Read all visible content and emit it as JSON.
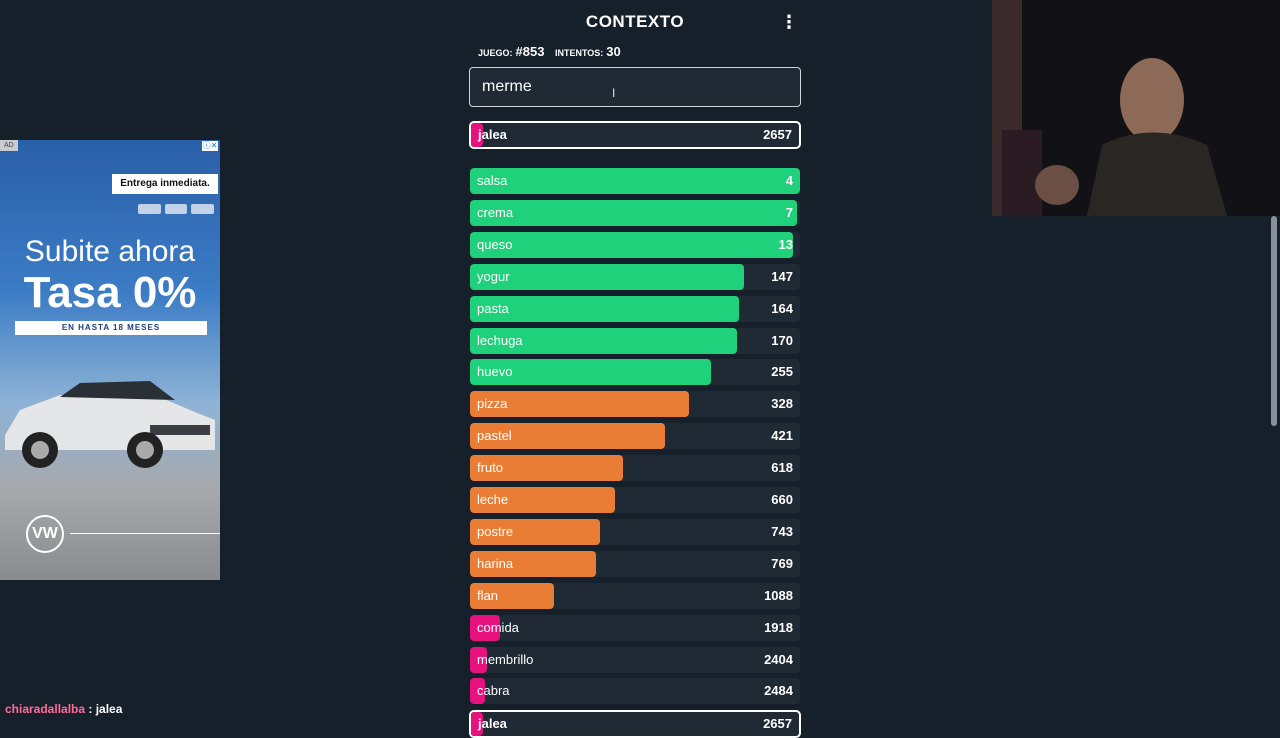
{
  "header": {
    "title": "CONTEXTO",
    "game_label": "JUEGO:",
    "game_value": "#853",
    "attempts_label": "INTENTOS:",
    "attempts_value": "30",
    "menu_icon": "vertical-dots-icon"
  },
  "input": {
    "value": "merme",
    "placeholder": ""
  },
  "current_guess": {
    "word": "jalea",
    "rank": "2657",
    "color": "#e8127f"
  },
  "colors": {
    "green": "#1ed17a",
    "orange": "#ea7d36",
    "pink": "#e8127f",
    "background": "#15202b"
  },
  "guesses": [
    {
      "word": "salsa",
      "rank": "4",
      "color": "green",
      "fill": 1.0
    },
    {
      "word": "crema",
      "rank": "7",
      "color": "green",
      "fill": 0.99
    },
    {
      "word": "queso",
      "rank": "13",
      "color": "green",
      "fill": 0.98
    },
    {
      "word": "yogur",
      "rank": "147",
      "color": "green",
      "fill": 0.83
    },
    {
      "word": "pasta",
      "rank": "164",
      "color": "green",
      "fill": 0.815
    },
    {
      "word": "lechuga",
      "rank": "170",
      "color": "green",
      "fill": 0.81
    },
    {
      "word": "huevo",
      "rank": "255",
      "color": "green",
      "fill": 0.73
    },
    {
      "word": "pizza",
      "rank": "328",
      "color": "orange",
      "fill": 0.665
    },
    {
      "word": "pastel",
      "rank": "421",
      "color": "orange",
      "fill": 0.59
    },
    {
      "word": "fruto",
      "rank": "618",
      "color": "orange",
      "fill": 0.465
    },
    {
      "word": "leche",
      "rank": "660",
      "color": "orange",
      "fill": 0.44
    },
    {
      "word": "postre",
      "rank": "743",
      "color": "orange",
      "fill": 0.395
    },
    {
      "word": "harina",
      "rank": "769",
      "color": "orange",
      "fill": 0.382
    },
    {
      "word": "flan",
      "rank": "1088",
      "color": "orange",
      "fill": 0.255
    },
    {
      "word": "comida",
      "rank": "1918",
      "color": "pink",
      "fill": 0.09
    },
    {
      "word": "membrillo",
      "rank": "2404",
      "color": "pink",
      "fill": 0.05
    },
    {
      "word": "cabra",
      "rank": "2484",
      "color": "pink",
      "fill": 0.045
    },
    {
      "word": "jalea",
      "rank": "2657",
      "color": "pink",
      "fill": 0.035,
      "current": true
    }
  ],
  "ad": {
    "label": "AD",
    "delivery": "Entrega inmediata.",
    "headline1": "Subite ahora",
    "headline2": "Tasa 0%",
    "subline": "EN HASTA 18 MESES",
    "logo_text": "VW"
  },
  "chat": {
    "user": "chiaradallalba",
    "separator": " : ",
    "message": "jalea"
  }
}
